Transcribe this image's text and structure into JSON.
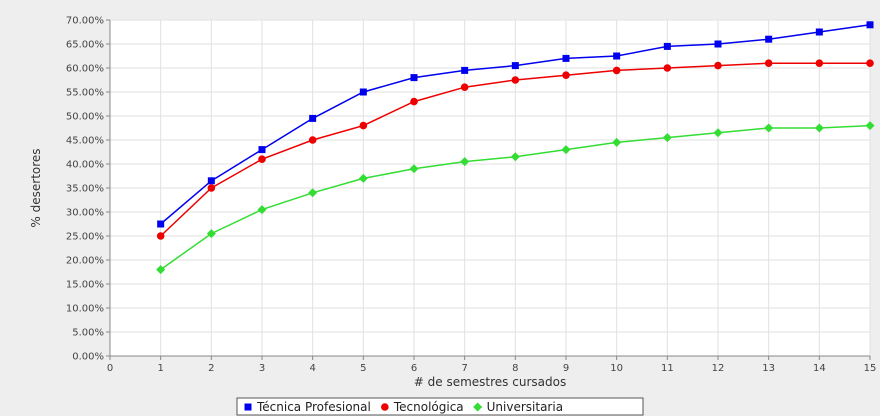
{
  "chart_data": {
    "type": "line",
    "title": "",
    "xlabel": "# de semestres cursados",
    "ylabel": "% desertores",
    "x": [
      1,
      2,
      3,
      4,
      5,
      6,
      7,
      8,
      9,
      10,
      11,
      12,
      13,
      14,
      15
    ],
    "xlim": [
      0,
      15
    ],
    "x_ticks": [
      "0",
      "1",
      "2",
      "3",
      "4",
      "5",
      "6",
      "7",
      "8",
      "9",
      "10",
      "11",
      "12",
      "13",
      "14",
      "15"
    ],
    "ylim": [
      0,
      70
    ],
    "y_ticks": [
      "0.00%",
      "5.00%",
      "10.00%",
      "15.00%",
      "20.00%",
      "25.00%",
      "30.00%",
      "35.00%",
      "40.00%",
      "45.00%",
      "50.00%",
      "55.00%",
      "60.00%",
      "65.00%",
      "70.00%"
    ],
    "grid": true,
    "legend_position": "bottom",
    "series": [
      {
        "name": "Técnica Profesional",
        "color": "#0000ee",
        "marker": "square",
        "values": [
          27.5,
          36.5,
          43.0,
          49.5,
          55.0,
          58.0,
          59.5,
          60.5,
          62.0,
          62.5,
          64.5,
          65.0,
          66.0,
          67.5,
          69.0
        ]
      },
      {
        "name": "Tecnológica",
        "color": "#ee0000",
        "marker": "circle",
        "values": [
          25.0,
          35.0,
          41.0,
          45.0,
          48.0,
          53.0,
          56.0,
          57.5,
          58.5,
          59.5,
          60.0,
          60.5,
          61.0,
          61.0,
          61.0
        ]
      },
      {
        "name": "Universitaria",
        "color": "#33dd33",
        "marker": "diamond",
        "values": [
          18.0,
          25.5,
          30.5,
          34.0,
          37.0,
          39.0,
          40.5,
          41.5,
          43.0,
          44.5,
          45.5,
          46.5,
          47.5,
          47.5,
          48.0
        ]
      }
    ]
  }
}
